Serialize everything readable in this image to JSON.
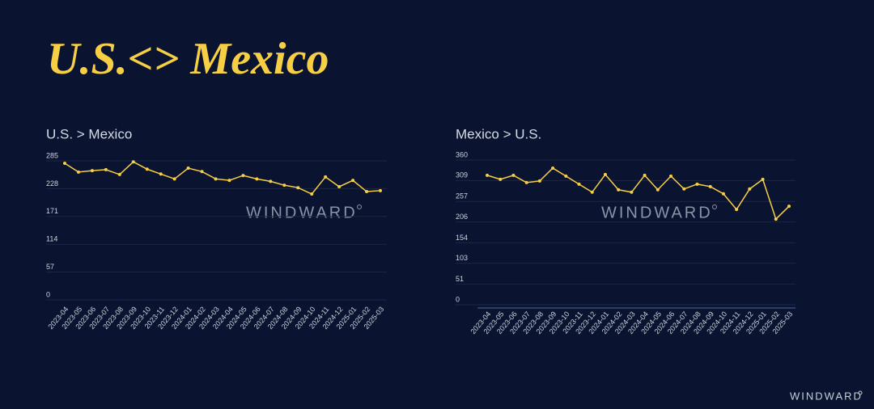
{
  "header": {
    "title": "U.S.<> Mexico"
  },
  "brand": "WINDWARD",
  "chart_data": [
    {
      "type": "line",
      "title": "U.S. > Mexico",
      "watermark": "WINDWARD",
      "categories": [
        "2023-04",
        "2023-05",
        "2023-06",
        "2023-07",
        "2023-08",
        "2023-09",
        "2023-10",
        "2023-11",
        "2023-12",
        "2024-01",
        "2024-02",
        "2024-03",
        "2024-04",
        "2024-05",
        "2024-06",
        "2024-07",
        "2024-08",
        "2024-09",
        "2024-10",
        "2024-11",
        "2024-12",
        "2025-01",
        "2025-02",
        "2025-03"
      ],
      "values": [
        280,
        262,
        265,
        267,
        257,
        283,
        268,
        258,
        248,
        270,
        263,
        248,
        245,
        255,
        248,
        243,
        235,
        230,
        217,
        252,
        232,
        245,
        222,
        224
      ],
      "color": "#f7cf45",
      "ylim": [
        0,
        285
      ],
      "yticks": [
        0,
        57,
        114,
        171,
        228,
        285
      ],
      "grid": true
    },
    {
      "type": "line",
      "title": "Mexico > U.S.",
      "watermark": "WINDWARD",
      "categories": [
        "2023-04",
        "2023-05",
        "2023-06",
        "2023-07",
        "2023-08",
        "2023-09",
        "2023-10",
        "2023-11",
        "2023-12",
        "2024-01",
        "2024-02",
        "2024-03",
        "2024-04",
        "2024-05",
        "2024-06",
        "2024-07",
        "2024-08",
        "2024-09",
        "2024-10",
        "2024-11",
        "2024-12",
        "2025-01",
        "2025-02",
        "2025-03"
      ],
      "values": [
        322,
        312,
        322,
        304,
        308,
        340,
        320,
        300,
        280,
        324,
        286,
        280,
        322,
        286,
        320,
        288,
        300,
        294,
        276,
        237,
        288,
        312,
        213,
        245
      ],
      "color": "#f7cf45",
      "ylim": [
        0,
        360
      ],
      "yticks": [
        0,
        51,
        103,
        154,
        206,
        257,
        309,
        360
      ],
      "grid": true
    }
  ]
}
